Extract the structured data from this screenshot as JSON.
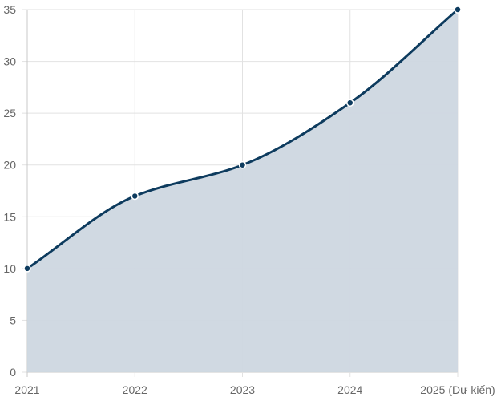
{
  "chart_data": {
    "type": "area",
    "title": "",
    "xlabel": "",
    "ylabel": "",
    "categories": [
      "2021",
      "2022",
      "2023",
      "2024",
      "2025 (Dự kiến)"
    ],
    "series": [
      {
        "values": [
          10,
          17,
          20,
          26,
          35
        ]
      }
    ],
    "ylim": [
      0,
      35
    ],
    "yticks": [
      0,
      5,
      10,
      15,
      20,
      25,
      30,
      35
    ],
    "grid": true,
    "legend": "none",
    "smooth": true
  },
  "colors": {
    "line": "#0d3b5e",
    "fill": "#cdd7e0",
    "point_fill": "#0d3b5e",
    "point_stroke": "#ffffff"
  }
}
